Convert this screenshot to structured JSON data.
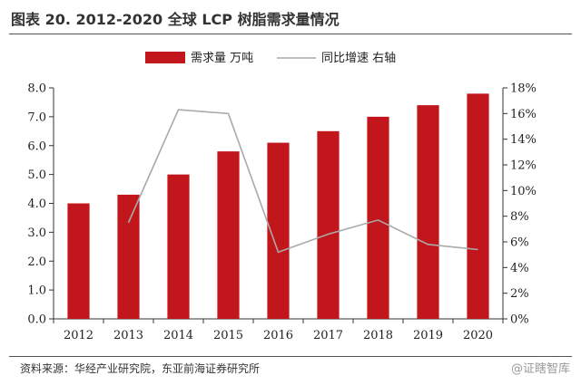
{
  "header": {
    "title": "图表 20. 2012-2020 全球 LCP 树脂需求量情况"
  },
  "footer": {
    "source": "资料来源：华经产业研究院，东亚前海证券研究所",
    "watermark": "@证瞎智库"
  },
  "colors": {
    "bar": "#c0161c",
    "line": "#a9a9a9",
    "axis": "#333333"
  },
  "chart_data": {
    "type": "bar",
    "title": "",
    "categories": [
      "2012",
      "2013",
      "2014",
      "2015",
      "2016",
      "2017",
      "2018",
      "2019",
      "2020"
    ],
    "series": [
      {
        "name": "需求量 万吨",
        "type": "bar",
        "axis": "left",
        "values": [
          4.0,
          4.3,
          5.0,
          5.8,
          6.1,
          6.5,
          7.0,
          7.4,
          7.8
        ]
      },
      {
        "name": "同比增速 右轴",
        "type": "line",
        "axis": "right",
        "values": [
          null,
          7.5,
          16.3,
          16.0,
          5.2,
          6.6,
          7.7,
          5.8,
          5.4
        ]
      }
    ],
    "y_left": {
      "min": 0,
      "max": 8,
      "ticks": [
        "0.0",
        "1.0",
        "2.0",
        "3.0",
        "4.0",
        "5.0",
        "6.0",
        "7.0",
        "8.0"
      ]
    },
    "y_right": {
      "min": 0,
      "max": 18,
      "ticks": [
        "0%",
        "2%",
        "4%",
        "6%",
        "8%",
        "10%",
        "12%",
        "14%",
        "16%",
        "18%"
      ]
    },
    "legend": {
      "position": "top"
    },
    "grid": false
  }
}
